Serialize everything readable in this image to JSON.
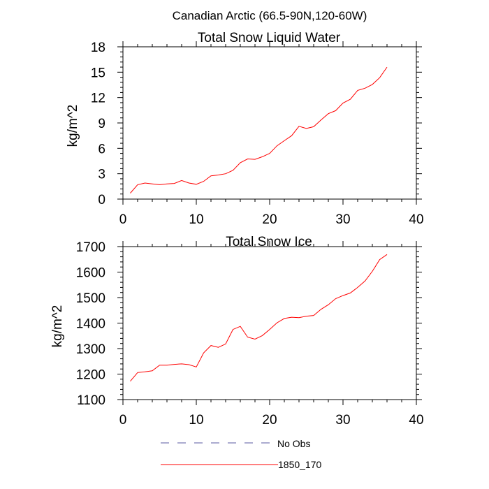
{
  "figure": {
    "suptitle": "Canadian Arctic (66.5-90N,120-60W)",
    "legend": [
      {
        "label": "No Obs",
        "color": "#5a5aa0",
        "dash": true
      },
      {
        "label": "1850_170",
        "color": "#ff0000",
        "dash": false
      }
    ]
  },
  "chart_data": [
    {
      "type": "line",
      "title": "Total Snow Liquid Water",
      "xlabel": "",
      "ylabel": "kg/m^2",
      "xlim": [
        0,
        40
      ],
      "ylim": [
        0,
        18
      ],
      "xticks": [
        0,
        10,
        20,
        30,
        40
      ],
      "yticks": [
        0,
        3,
        6,
        9,
        12,
        15,
        18
      ],
      "grid": false,
      "series": [
        {
          "name": "1850_170",
          "color": "#ff0000",
          "x": [
            1,
            2,
            3,
            4,
            5,
            6,
            7,
            8,
            9,
            10,
            11,
            12,
            13,
            14,
            15,
            16,
            17,
            18,
            19,
            20,
            21,
            22,
            23,
            24,
            25,
            26,
            27,
            28,
            29,
            30,
            31,
            32,
            33,
            34,
            35,
            36
          ],
          "y": [
            0.7,
            1.7,
            1.9,
            1.8,
            1.7,
            1.8,
            1.85,
            2.2,
            1.9,
            1.75,
            2.1,
            2.75,
            2.85,
            3.0,
            3.4,
            4.3,
            4.75,
            4.7,
            5.0,
            5.4,
            6.3,
            6.9,
            7.5,
            8.6,
            8.35,
            8.55,
            9.35,
            10.1,
            10.45,
            11.35,
            11.8,
            12.85,
            13.1,
            13.55,
            14.35,
            15.6
          ]
        }
      ]
    },
    {
      "type": "line",
      "title": "Total Snow Ice",
      "xlabel": "",
      "ylabel": "kg/m^2",
      "xlim": [
        0,
        40
      ],
      "ylim": [
        1100,
        1700
      ],
      "xticks": [
        0,
        10,
        20,
        30,
        40
      ],
      "yticks": [
        1100,
        1200,
        1300,
        1400,
        1500,
        1600,
        1700
      ],
      "grid": false,
      "series": [
        {
          "name": "1850_170",
          "color": "#ff0000",
          "x": [
            1,
            2,
            3,
            4,
            5,
            6,
            7,
            8,
            9,
            10,
            11,
            12,
            13,
            14,
            15,
            16,
            17,
            18,
            19,
            20,
            21,
            22,
            23,
            24,
            25,
            26,
            27,
            28,
            29,
            30,
            31,
            32,
            33,
            34,
            35,
            36
          ],
          "y": [
            1172,
            1206,
            1209,
            1213,
            1235,
            1235,
            1238,
            1240,
            1237,
            1228,
            1283,
            1312,
            1305,
            1318,
            1375,
            1387,
            1345,
            1337,
            1351,
            1375,
            1401,
            1418,
            1423,
            1421,
            1427,
            1430,
            1454,
            1472,
            1496,
            1508,
            1518,
            1540,
            1565,
            1603,
            1649,
            1669
          ]
        }
      ]
    }
  ]
}
